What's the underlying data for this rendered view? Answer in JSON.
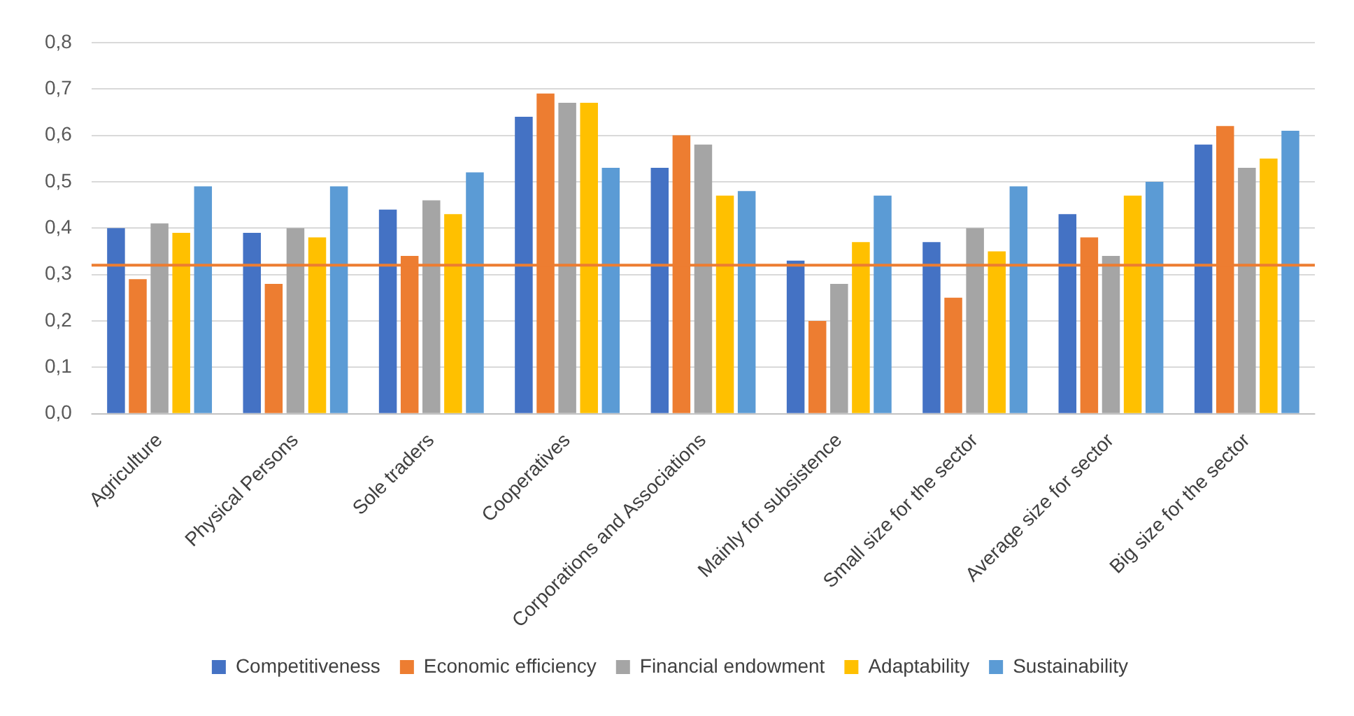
{
  "chart_data": {
    "type": "bar",
    "categories": [
      "Agriculture",
      "Physical Persons",
      "Sole traders",
      "Cooperatives",
      "Corporations and Associations",
      "Mainly for subsistence",
      "Small size for the sector",
      "Average size for sector",
      "Big size for the sector"
    ],
    "series": [
      {
        "name": "Competitiveness",
        "color": "#4472c4",
        "values": [
          0.4,
          0.39,
          0.44,
          0.64,
          0.53,
          0.33,
          0.37,
          0.43,
          0.58
        ]
      },
      {
        "name": "Economic efficiency",
        "color": "#ed7d31",
        "values": [
          0.29,
          0.28,
          0.34,
          0.69,
          0.6,
          0.2,
          0.25,
          0.38,
          0.62
        ]
      },
      {
        "name": "Financial endowment",
        "color": "#a5a5a5",
        "values": [
          0.41,
          0.4,
          0.46,
          0.67,
          0.58,
          0.28,
          0.4,
          0.34,
          0.53
        ]
      },
      {
        "name": "Adaptability",
        "color": "#ffc000",
        "values": [
          0.39,
          0.38,
          0.43,
          0.67,
          0.47,
          0.37,
          0.35,
          0.47,
          0.55
        ]
      },
      {
        "name": "Sustainability",
        "color": "#5b9bd5",
        "values": [
          0.49,
          0.49,
          0.52,
          0.53,
          0.48,
          0.47,
          0.49,
          0.5,
          0.61
        ]
      }
    ],
    "ylim": [
      0,
      0.8
    ],
    "yticks": [
      {
        "value": 0,
        "label": "0,0"
      },
      {
        "value": 0.1,
        "label": "0,1"
      },
      {
        "value": 0.2,
        "label": "0,2"
      },
      {
        "value": 0.3,
        "label": "0,3"
      },
      {
        "value": 0.4,
        "label": "0,4"
      },
      {
        "value": 0.5,
        "label": "0,5"
      },
      {
        "value": 0.6,
        "label": "0,6"
      },
      {
        "value": 0.7,
        "label": "0,7"
      },
      {
        "value": 0.8,
        "label": "0,8"
      }
    ],
    "ref_lines": [
      {
        "axis": "y",
        "value": 0.32,
        "color": "#ed7d31"
      }
    ],
    "grid": "y",
    "legend": "bottom"
  }
}
